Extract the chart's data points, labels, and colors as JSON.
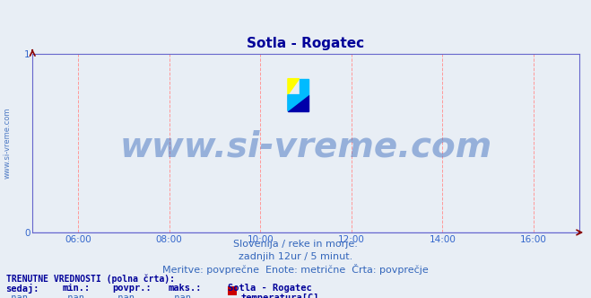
{
  "title": "Sotla - Rogatec",
  "title_color": "#000099",
  "title_fontsize": 11,
  "bg_color": "#e8eef5",
  "plot_bg_color": "#e8eef5",
  "xlim_min": 0,
  "xlim_max": 1,
  "ylim_min": 0,
  "ylim_max": 1,
  "xtick_labels": [
    "06:00",
    "08:00",
    "10:00",
    "12:00",
    "14:00",
    "16:00"
  ],
  "xtick_positions": [
    0.0833,
    0.25,
    0.4167,
    0.5833,
    0.75,
    0.9167
  ],
  "ytick_labels": [
    "0",
    "1"
  ],
  "ytick_positions": [
    0.0,
    1.0
  ],
  "axis_color": "#3366cc",
  "grid_color": "#ff9999",
  "grid_style": "--",
  "watermark": "www.si-vreme.com",
  "watermark_color": "#3366bb",
  "watermark_alpha": 0.45,
  "watermark_fontsize": 28,
  "side_text": "www.si-vreme.com",
  "side_text_color": "#3366bb",
  "side_text_fontsize": 6,
  "footer_line1": "Slovenija / reke in morje.",
  "footer_line2": "zadnjih 12ur / 5 minut.",
  "footer_line3": "Meritve: povprečne  Enote: metrične  Črta: povprečje",
  "footer_color": "#3366bb",
  "footer_fontsize": 8,
  "legend_header": "TRENUTNE VREDNOSTI (polna črta):",
  "legend_header_color": "#000099",
  "legend_header_fontsize": 7,
  "legend_col1": "sedaj:",
  "legend_col2": "min.:",
  "legend_col3": "povpr.:",
  "legend_col4": "maks.:",
  "legend_col5": "Sotla - Rogatec",
  "legend_vals": [
    "-nan",
    "-nan",
    "-nan",
    "-nan"
  ],
  "legend_series": "temperatura[C]",
  "legend_series_color": "#cc0000",
  "legend_color": "#3366bb",
  "legend_bold_color": "#000099",
  "legend_fontsize": 7.5,
  "arrow_color": "#880000",
  "spine_color": "#6666cc",
  "axis_line_color": "#8888ff"
}
